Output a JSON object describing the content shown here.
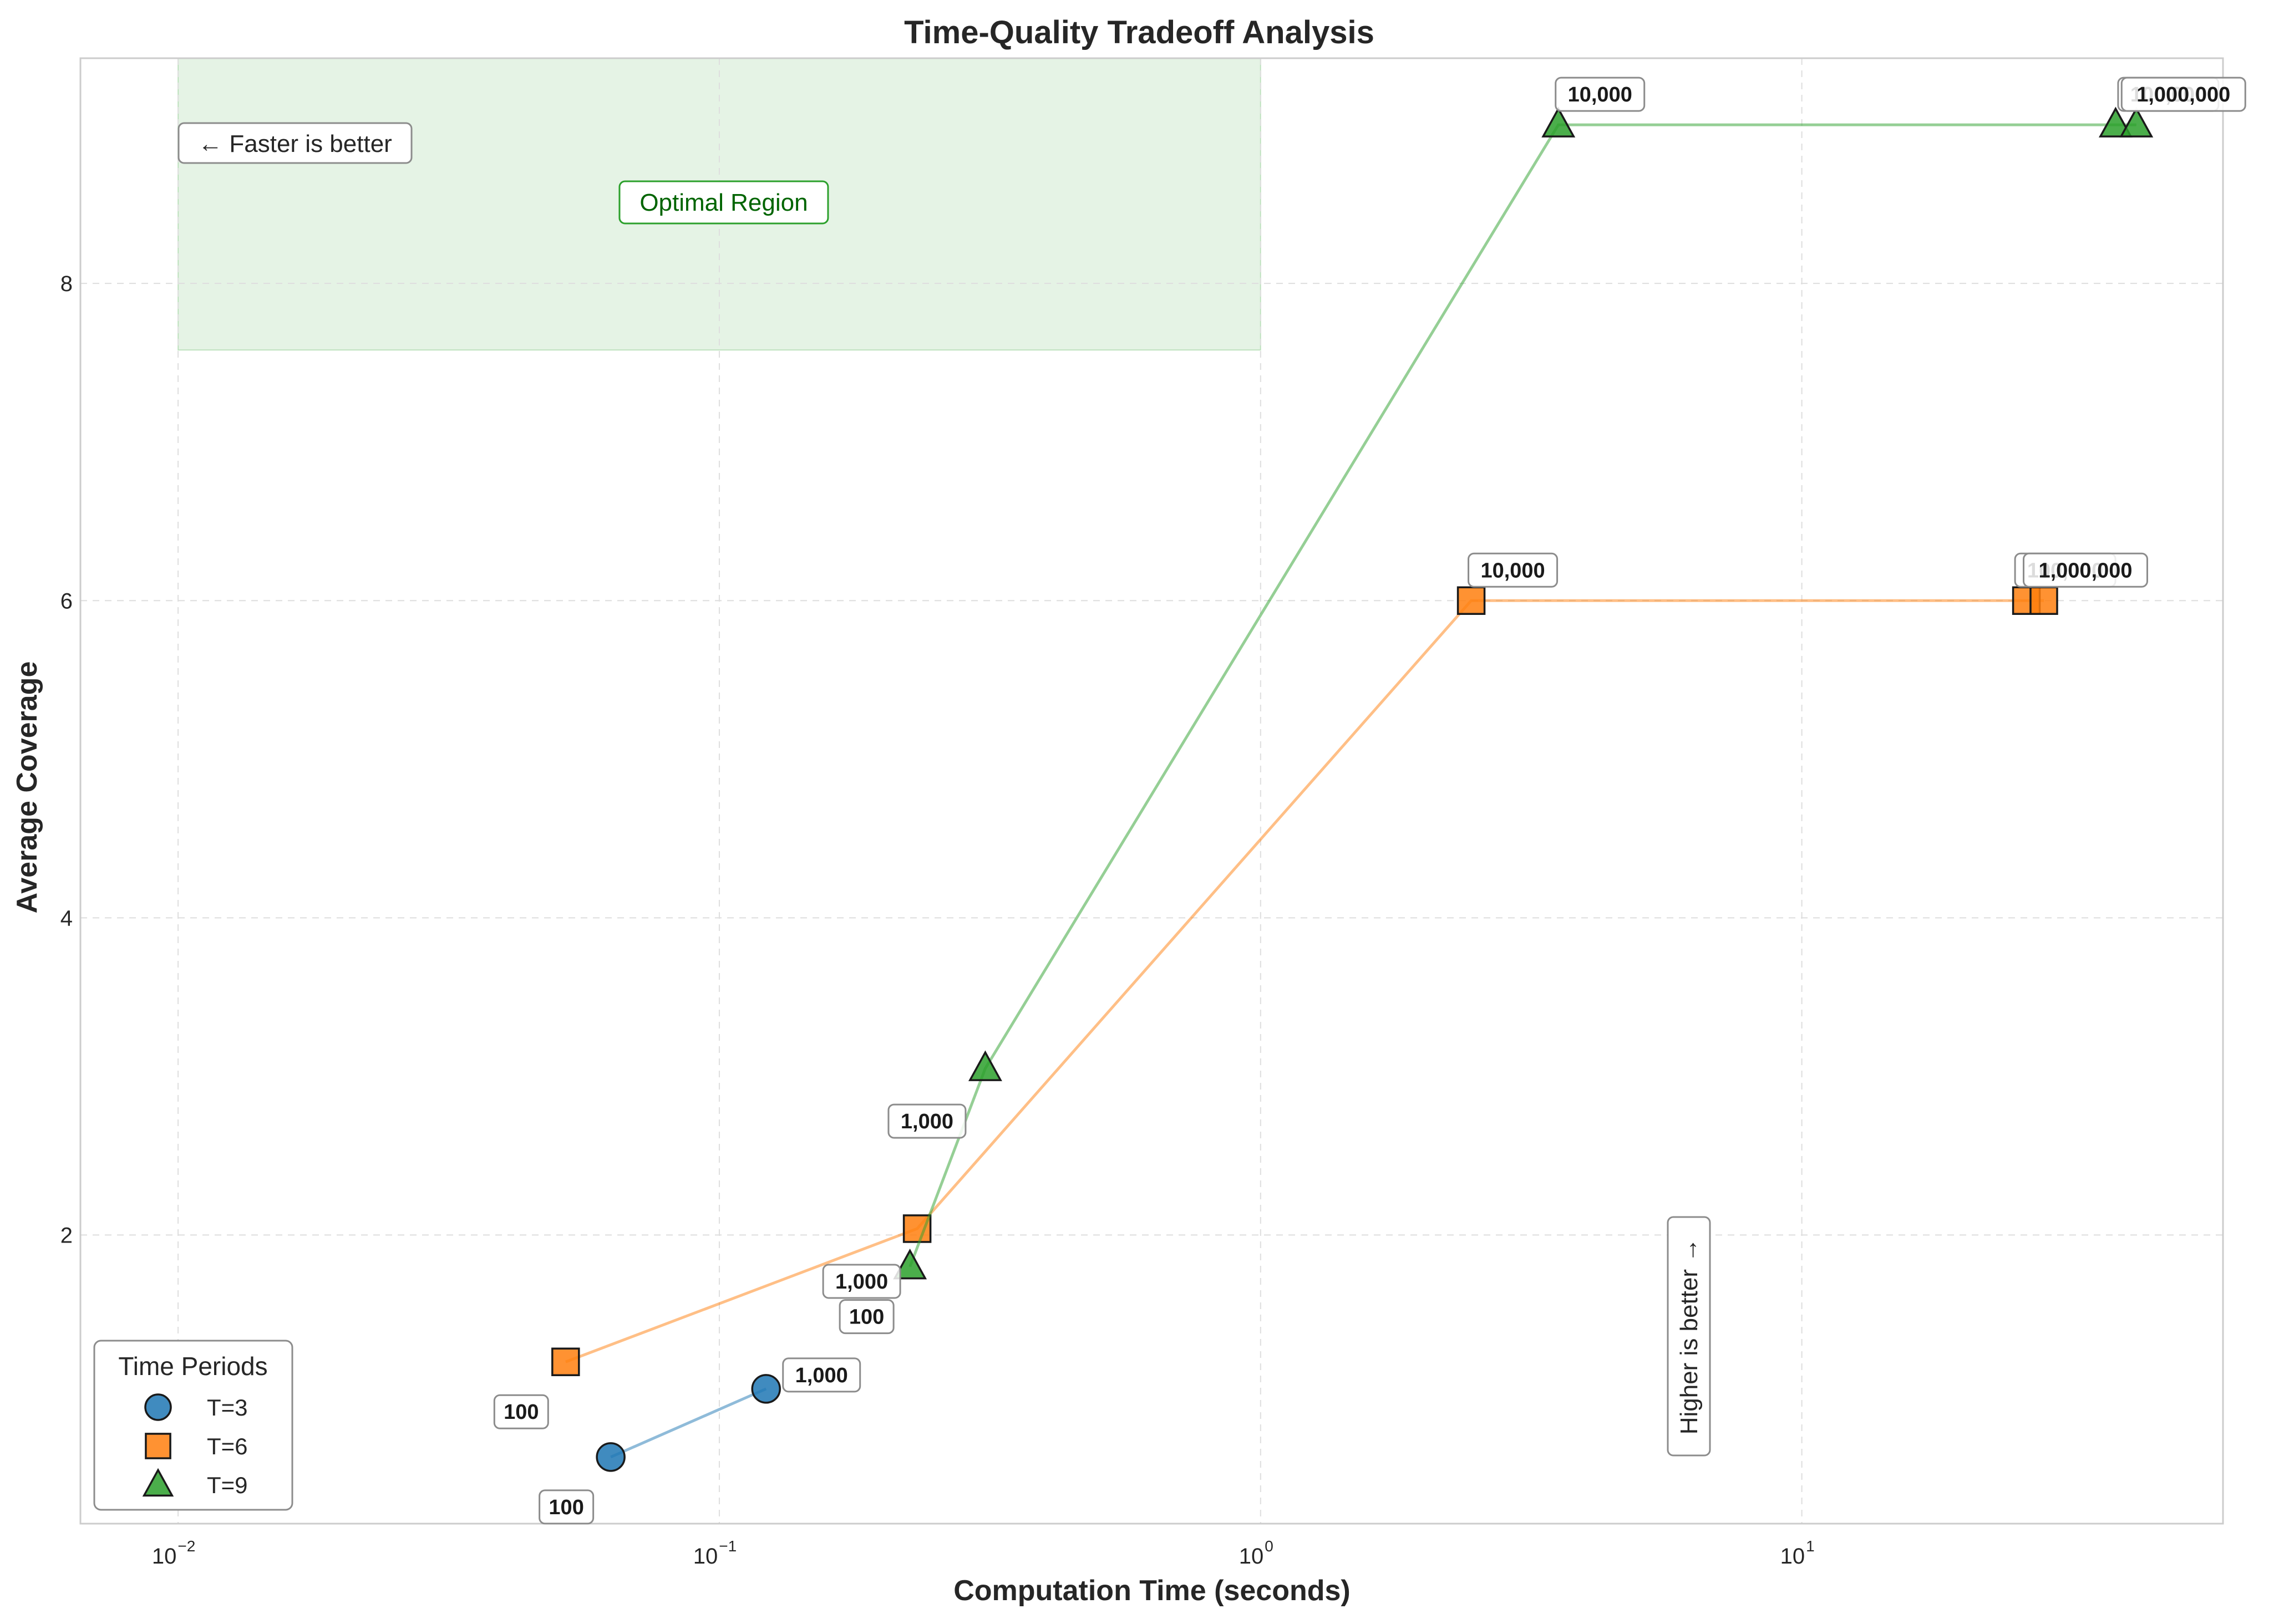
{
  "chart_data": {
    "type": "line",
    "title": "Time-Quality Tradeoff Analysis",
    "xlabel": "Computation Time (seconds)",
    "ylabel": "Average Coverage",
    "xscale": "log",
    "xlim": [
      0.0066,
      60
    ],
    "ylim": [
      0.18,
      9.42
    ],
    "x_ticks": [
      {
        "value": 0.01,
        "base": "10",
        "exp": "−2"
      },
      {
        "value": 0.1,
        "base": "10",
        "exp": "−1"
      },
      {
        "value": 1,
        "base": "10",
        "exp": "0"
      },
      {
        "value": 10,
        "base": "10",
        "exp": "1"
      }
    ],
    "y_ticks": [
      {
        "value": 2,
        "label": "2"
      },
      {
        "value": 4,
        "label": "4"
      },
      {
        "value": 6,
        "label": "6"
      },
      {
        "value": 8,
        "label": "8"
      }
    ],
    "grid": true,
    "legend": {
      "title": "Time Periods",
      "placement": "lower-left"
    },
    "series": [
      {
        "name": "T=3",
        "color": "#1f77b4",
        "marker": "circle",
        "points": [
          {
            "x": 0.063,
            "y": 0.6,
            "label": "100"
          },
          {
            "x": 0.122,
            "y": 1.03,
            "label": "1,000"
          }
        ]
      },
      {
        "name": "T=6",
        "color": "#ff7f0e",
        "marker": "square",
        "points": [
          {
            "x": 0.052,
            "y": 1.2,
            "label": "100"
          },
          {
            "x": 0.232,
            "y": 2.04,
            "label": "1,000"
          },
          {
            "x": 2.45,
            "y": 6.0,
            "label": "10,000"
          },
          {
            "x": 26.0,
            "y": 6.0,
            "label": "100,000"
          },
          {
            "x": 28.0,
            "y": 6.0,
            "label": "1,000,000"
          }
        ]
      },
      {
        "name": "T=9",
        "color": "#2ca02c",
        "marker": "triangle",
        "points": [
          {
            "x": 0.225,
            "y": 1.8,
            "label": "100"
          },
          {
            "x": 0.31,
            "y": 3.05,
            "label": "1,000"
          },
          {
            "x": 3.55,
            "y": 9.0,
            "label": "10,000"
          },
          {
            "x": 38.0,
            "y": 9.0,
            "label": "100,000"
          },
          {
            "x": 41.5,
            "y": 9.0,
            "label": "1,000,000"
          }
        ]
      }
    ],
    "optimal_region": {
      "label": "Optimal Region",
      "x_range": [
        0.01,
        1
      ],
      "y_range": [
        7.58,
        9.42
      ],
      "color": "#2ca02c"
    },
    "annotations": {
      "faster": "← Faster is better",
      "higher": "Higher is better →"
    }
  }
}
